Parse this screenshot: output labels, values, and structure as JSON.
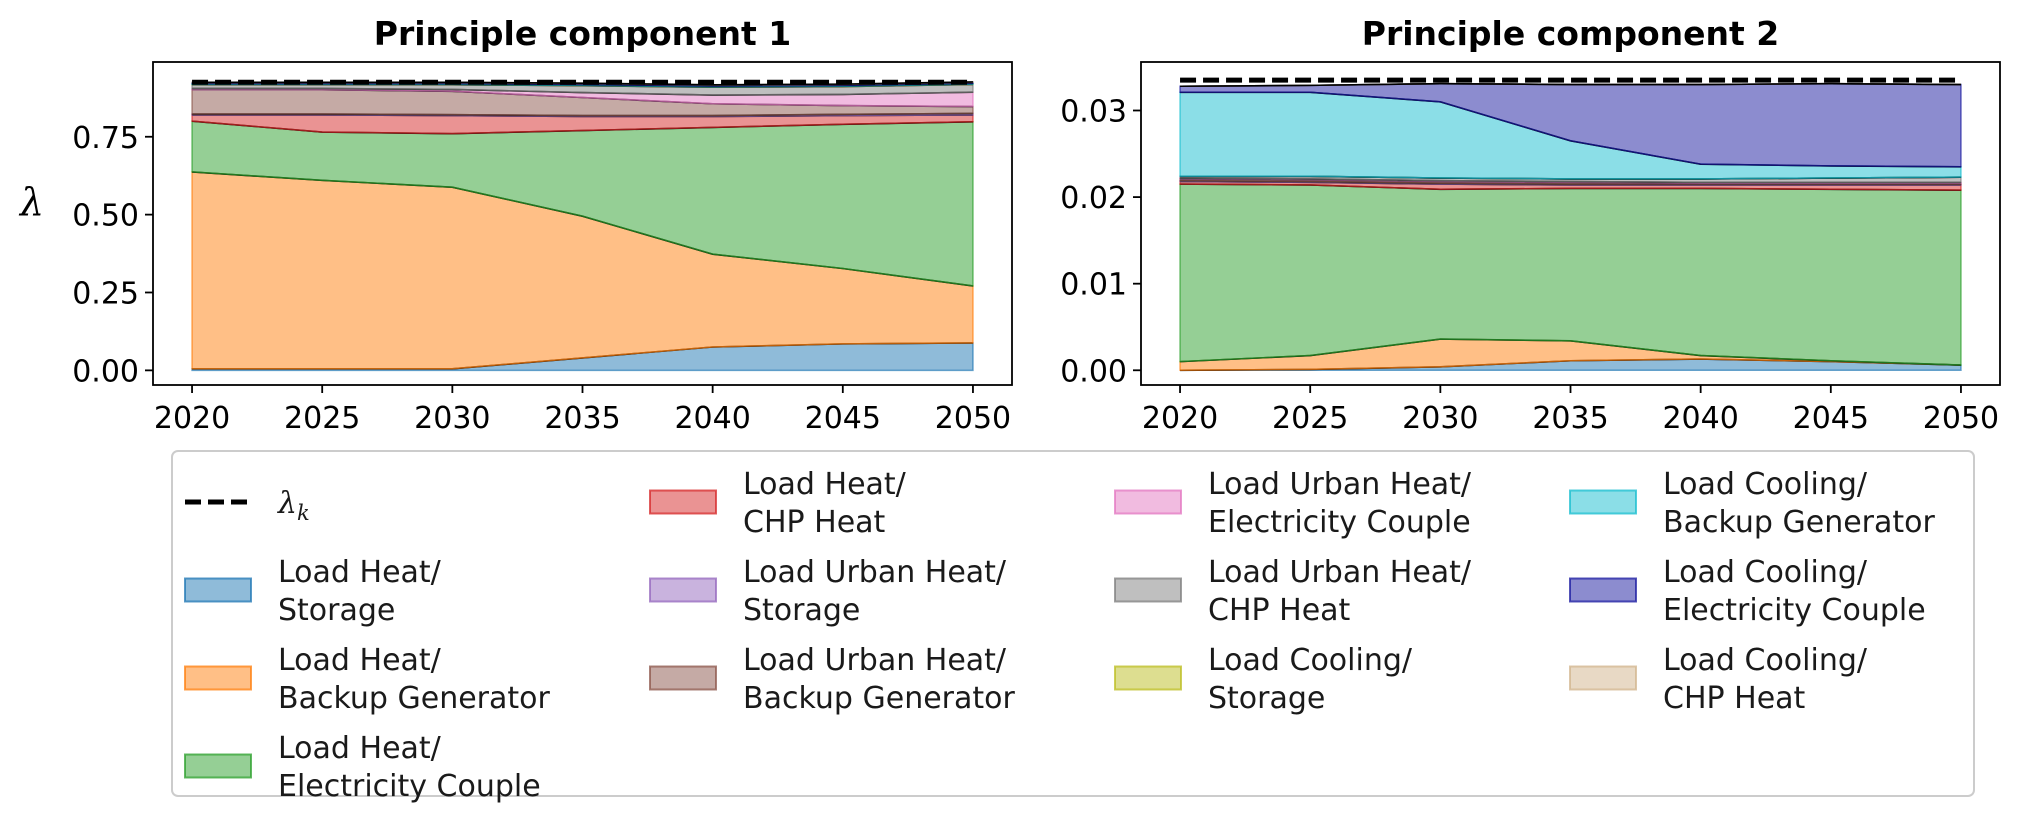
{
  "chart_data": [
    {
      "type": "area",
      "stacked": true,
      "title": "Principle component 1",
      "ylabel": "λ",
      "x": [
        2020,
        2025,
        2030,
        2035,
        2040,
        2045,
        2050
      ],
      "xticks": [
        "2020",
        "2025",
        "2030",
        "2035",
        "2040",
        "2045",
        "2050"
      ],
      "yticks": [
        "0.00",
        "0.25",
        "0.50",
        "0.75"
      ],
      "ylim": [
        -0.047,
        0.99
      ],
      "lambda_k": [
        0.925,
        0.925,
        0.925,
        0.925,
        0.925,
        0.925,
        0.925
      ],
      "series": [
        {
          "name": "Load Heat/ Storage",
          "values": [
            0.005,
            0.005,
            0.005,
            0.04,
            0.075,
            0.085,
            0.088
          ]
        },
        {
          "name": "Load Heat/ Backup Generator",
          "values": [
            0.632,
            0.605,
            0.583,
            0.455,
            0.298,
            0.242,
            0.183
          ]
        },
        {
          "name": "Load Heat/ Electricity Couple",
          "values": [
            0.163,
            0.155,
            0.172,
            0.275,
            0.407,
            0.463,
            0.527
          ]
        },
        {
          "name": "Load Heat/ CHP Heat",
          "values": [
            0.02,
            0.055,
            0.058,
            0.045,
            0.035,
            0.028,
            0.022
          ]
        },
        {
          "name": "Load Urban Heat/ Storage",
          "values": [
            0.003,
            0.003,
            0.003,
            0.003,
            0.003,
            0.004,
            0.005
          ]
        },
        {
          "name": "Load Urban Heat/ Backup Generator",
          "values": [
            0.078,
            0.078,
            0.075,
            0.058,
            0.038,
            0.028,
            0.022
          ]
        },
        {
          "name": "Load Urban Heat/ Electricity Couple",
          "values": [
            0.004,
            0.004,
            0.006,
            0.016,
            0.028,
            0.036,
            0.046
          ]
        },
        {
          "name": "Load Urban Heat/ CHP Heat",
          "values": [
            0.012,
            0.012,
            0.015,
            0.022,
            0.025,
            0.025,
            0.025
          ]
        },
        {
          "name": "Load Cooling/ Storage",
          "values": [
            0.001,
            0.001,
            0.001,
            0.001,
            0.001,
            0.001,
            0.001
          ]
        },
        {
          "name": "Load Cooling/ Backup Generator",
          "values": [
            0.003,
            0.003,
            0.003,
            0.003,
            0.003,
            0.003,
            0.003
          ]
        },
        {
          "name": "Load Cooling/ Electricity Couple",
          "values": [
            0.003,
            0.003,
            0.003,
            0.003,
            0.003,
            0.003,
            0.003
          ]
        },
        {
          "name": "Load Cooling/ CHP Heat",
          "values": [
            0.001,
            0.001,
            0.001,
            0.001,
            0.001,
            0.001,
            0.001
          ]
        }
      ]
    },
    {
      "type": "area",
      "stacked": true,
      "title": "Principle component 2",
      "ylabel": "",
      "x": [
        2020,
        2025,
        2030,
        2035,
        2040,
        2045,
        2050
      ],
      "xticks": [
        "2020",
        "2025",
        "2030",
        "2035",
        "2040",
        "2045",
        "2050"
      ],
      "yticks": [
        "0.00",
        "0.01",
        "0.02",
        "0.03"
      ],
      "ylim": [
        -0.0017,
        0.0356
      ],
      "lambda_k": [
        0.0335,
        0.0335,
        0.0335,
        0.0335,
        0.0335,
        0.0335,
        0.0335
      ],
      "series": [
        {
          "name": "Load Heat/ Storage",
          "values": [
            0.0,
            0.0001,
            0.0004,
            0.0011,
            0.0013,
            0.001,
            0.0006
          ]
        },
        {
          "name": "Load Heat/ Backup Generator",
          "values": [
            0.001,
            0.0016,
            0.0032,
            0.0023,
            0.0004,
            0.0001,
            0.0
          ]
        },
        {
          "name": "Load Heat/ Electricity Couple",
          "values": [
            0.0205,
            0.0197,
            0.0173,
            0.0176,
            0.0193,
            0.0198,
            0.0202
          ]
        },
        {
          "name": "Load Heat/ CHP Heat",
          "values": [
            0.0003,
            0.0003,
            0.0006,
            0.0004,
            0.0004,
            0.0005,
            0.0006
          ]
        },
        {
          "name": "Load Urban Heat/ Storage",
          "values": [
            0.0001,
            0.0001,
            0.0001,
            0.0001,
            0.0001,
            0.0001,
            0.0001
          ]
        },
        {
          "name": "Load Urban Heat/ Backup Generator",
          "values": [
            0.0002,
            0.0002,
            0.0002,
            0.0002,
            0.0001,
            0.0001,
            0.0001
          ]
        },
        {
          "name": "Load Urban Heat/ Electricity Couple",
          "values": [
            0.0001,
            0.0001,
            0.0001,
            0.0001,
            0.0001,
            0.0001,
            0.0001
          ]
        },
        {
          "name": "Load Urban Heat/ CHP Heat",
          "values": [
            0.0002,
            0.0003,
            0.0003,
            0.0003,
            0.0004,
            0.0005,
            0.0006
          ]
        },
        {
          "name": "Load Cooling/ Storage",
          "values": [
            0.0,
            0.0,
            0.0,
            0.0,
            0.0,
            0.0,
            0.0
          ]
        },
        {
          "name": "Load Cooling/ Backup Generator",
          "values": [
            0.0097,
            0.0097,
            0.0088,
            0.0044,
            0.0017,
            0.0014,
            0.0012
          ]
        },
        {
          "name": "Load Cooling/ Electricity Couple",
          "values": [
            0.0007,
            0.0008,
            0.0021,
            0.0065,
            0.0092,
            0.0095,
            0.0095
          ]
        },
        {
          "name": "Load Cooling/ CHP Heat",
          "values": [
            0.0,
            0.0,
            0.0,
            0.0,
            0.0,
            0.0,
            0.0
          ]
        }
      ]
    }
  ],
  "legend": {
    "lambda_label": "λ",
    "lambda_subscript": "k",
    "placement": "bottom",
    "columns": 4,
    "entries": [
      {
        "line1": "Load Heat/",
        "line2": "Storage"
      },
      {
        "line1": "Load Heat/",
        "line2": "Backup Generator"
      },
      {
        "line1": "Load Heat/",
        "line2": "Electricity Couple"
      },
      {
        "line1": "Load Heat/",
        "line2": "CHP Heat"
      },
      {
        "line1": "Load Urban Heat/",
        "line2": "Storage"
      },
      {
        "line1": "Load Urban Heat/",
        "line2": "Backup Generator"
      },
      {
        "line1": "Load Urban Heat/",
        "line2": "Electricity Couple"
      },
      {
        "line1": "Load Urban Heat/",
        "line2": "CHP Heat"
      },
      {
        "line1": "Load Cooling/",
        "line2": "Storage"
      },
      {
        "line1": "Load Cooling/",
        "line2": "Backup Generator"
      },
      {
        "line1": "Load Cooling/",
        "line2": "Electricity Couple"
      },
      {
        "line1": "Load Cooling/",
        "line2": "CHP Heat"
      }
    ]
  },
  "colors": [
    "#1f77b4",
    "#ff7f0e",
    "#2ca02c",
    "#d62728",
    "#9467bd",
    "#8c564b",
    "#e377c2",
    "#7f7f7f",
    "#bcbd22",
    "#17becf",
    "#1a1aa0",
    "#d2b48c"
  ],
  "fill_alpha": 0.5
}
